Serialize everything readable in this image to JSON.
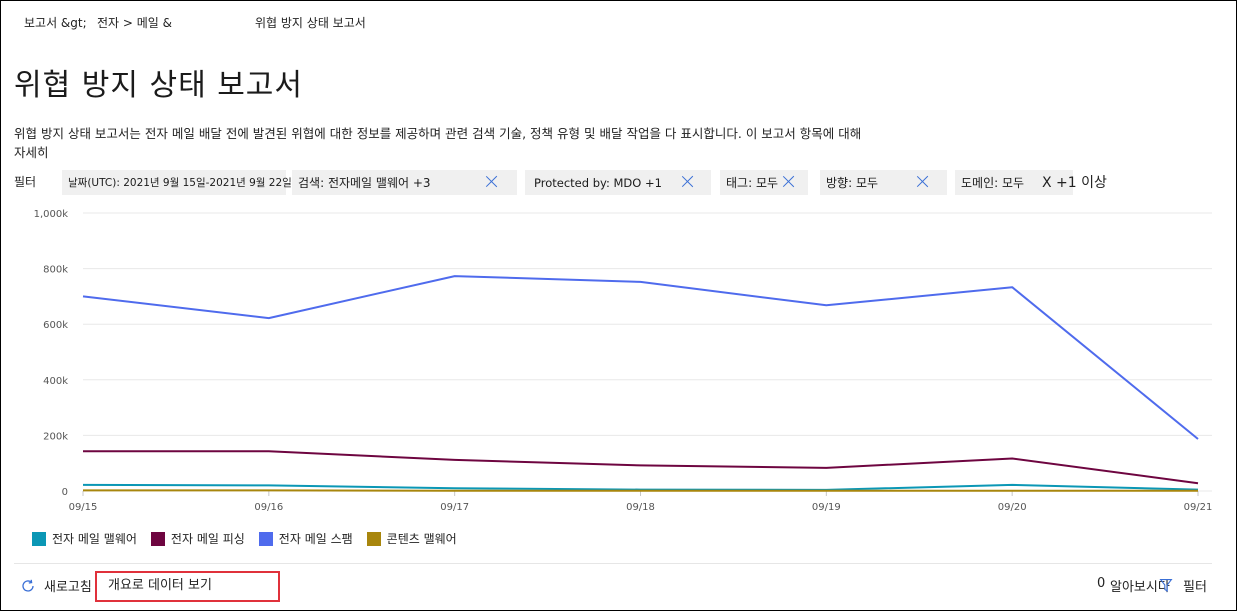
{
  "breadcrumb": {
    "part1": "보고서 &gt;",
    "part2": "전자 > 메일 &",
    "part3": "위협 방지 상태 보고서"
  },
  "page": {
    "title": "위협 방지 상태 보고서",
    "description_line1": "위협 방지 상태 보고서는 전자 메일 배달 전에 발견된 위협에 대한 정보를 제공하며 관련 검색 기술, 정책 유형 및 배달 작업을 다 표시합니다. 이 보고서 항목에 대해",
    "description_line2": "자세히"
  },
  "filters": {
    "label": "필터",
    "chips": [
      {
        "label": "날짜(UTC): 2021년 9월 15일-2021년 9월 22일"
      },
      {
        "label": "검색: 전자메일 맬웨어 +3"
      },
      {
        "label": "Protected by: MDO +1"
      },
      {
        "label": "태그: 모두"
      },
      {
        "label": "방향: 모두"
      },
      {
        "label": "도메인: 모두"
      }
    ],
    "overflow": "X +1 이상"
  },
  "chart_data": {
    "type": "line",
    "x": [
      "09/15",
      "09/16",
      "09/17",
      "09/18",
      "09/19",
      "09/20",
      "09/21"
    ],
    "ylim": [
      0,
      1000000
    ],
    "yticks": [
      "0",
      "200k",
      "400k",
      "600k",
      "800k",
      "1,000k"
    ],
    "grid": true,
    "legend_position": "bottom-left",
    "series": [
      {
        "name": "전자 메일 맬웨어",
        "color": "#0b97b5",
        "values": [
          22000,
          20000,
          10000,
          5000,
          4000,
          22000,
          5000
        ]
      },
      {
        "name": "전자 메일 피싱",
        "color": "#6e0540",
        "values": [
          143000,
          143000,
          112000,
          92000,
          83000,
          117000,
          28000
        ]
      },
      {
        "name": "전자 메일 스팸",
        "color": "#4f6bed",
        "values": [
          700000,
          622000,
          773000,
          752000,
          668000,
          733000,
          187000
        ]
      },
      {
        "name": "콘텐츠 맬웨어",
        "color": "#a8860d",
        "values": [
          2000,
          2000,
          1000,
          1000,
          1000,
          1000,
          1000
        ]
      }
    ]
  },
  "footer": {
    "refresh_label": "새로고침",
    "overview_link": "개요로 데이터 보기",
    "count": "0",
    "learn_more": "알아보시다",
    "filter_label": "필터"
  }
}
